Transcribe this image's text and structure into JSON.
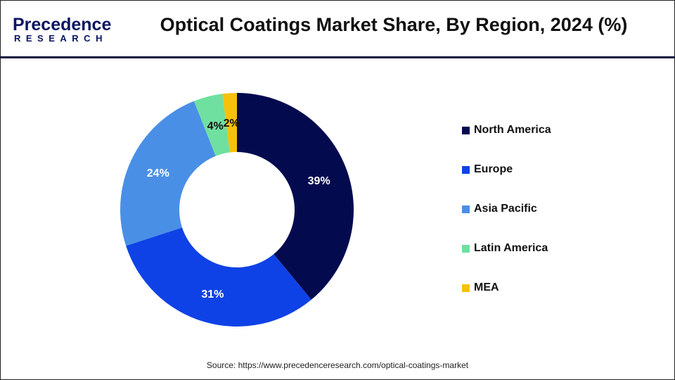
{
  "logo": {
    "text_top": "Precedence",
    "text_bottom": "RESEARCH"
  },
  "title": "Optical Coatings Market Share, By Region, 2024 (%)",
  "source": "Source: https://www.precedenceresearch.com/optical-coatings-market",
  "chart_data": {
    "type": "pie",
    "donut": true,
    "title": "Optical Coatings Market Share, By Region, 2024 (%)",
    "categories": [
      "North America",
      "Europe",
      "Asia Pacific",
      "Latin America",
      "MEA"
    ],
    "values": [
      39,
      31,
      24,
      4,
      2
    ],
    "labels": [
      "39%",
      "31%",
      "24%",
      "4%",
      "2%"
    ],
    "colors": [
      "#030a4e",
      "#0f42e6",
      "#4a8fe6",
      "#6fe0a0",
      "#f6c10a"
    ],
    "label_colors": [
      "#ffffff",
      "#ffffff",
      "#ffffff",
      "#111111",
      "#111111"
    ],
    "legend_position": "right"
  }
}
